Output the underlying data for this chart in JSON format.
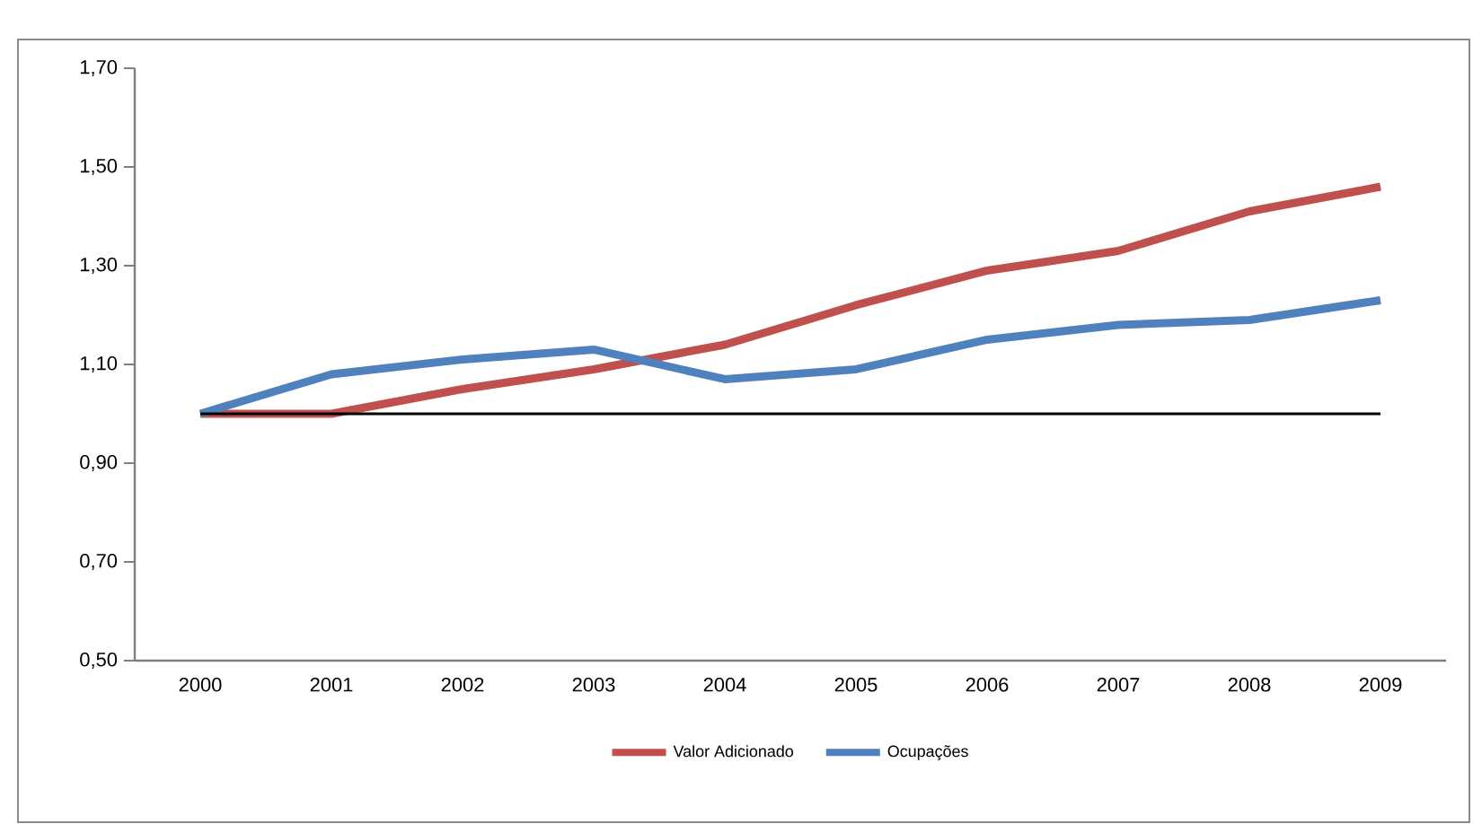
{
  "chart_data": {
    "type": "line",
    "categories": [
      "2000",
      "2001",
      "2002",
      "2003",
      "2004",
      "2005",
      "2006",
      "2007",
      "2008",
      "2009"
    ],
    "series": [
      {
        "name": "Valor Adicionado",
        "color": "#c0504d",
        "values": [
          1.0,
          1.0,
          1.05,
          1.09,
          1.14,
          1.22,
          1.29,
          1.33,
          1.41,
          1.46
        ]
      },
      {
        "name": "Ocupações",
        "color": "#4f81bd",
        "values": [
          1.0,
          1.08,
          1.11,
          1.13,
          1.07,
          1.09,
          1.15,
          1.18,
          1.19,
          1.23
        ]
      }
    ],
    "ylim": [
      0.5,
      1.7
    ],
    "yticks": [
      {
        "value": 0.5,
        "label": "0,50"
      },
      {
        "value": 0.7,
        "label": "0,70"
      },
      {
        "value": 0.9,
        "label": "0,90"
      },
      {
        "value": 1.1,
        "label": "1,10"
      },
      {
        "value": 1.3,
        "label": "1,30"
      },
      {
        "value": 1.5,
        "label": "1,50"
      },
      {
        "value": 1.7,
        "label": "1,70"
      }
    ],
    "ref_lines": [
      {
        "axis": "y",
        "value": 1.0,
        "color": "#000000"
      }
    ],
    "legend": "bottom",
    "grid": false,
    "marker": "none",
    "line_style": "solid"
  }
}
